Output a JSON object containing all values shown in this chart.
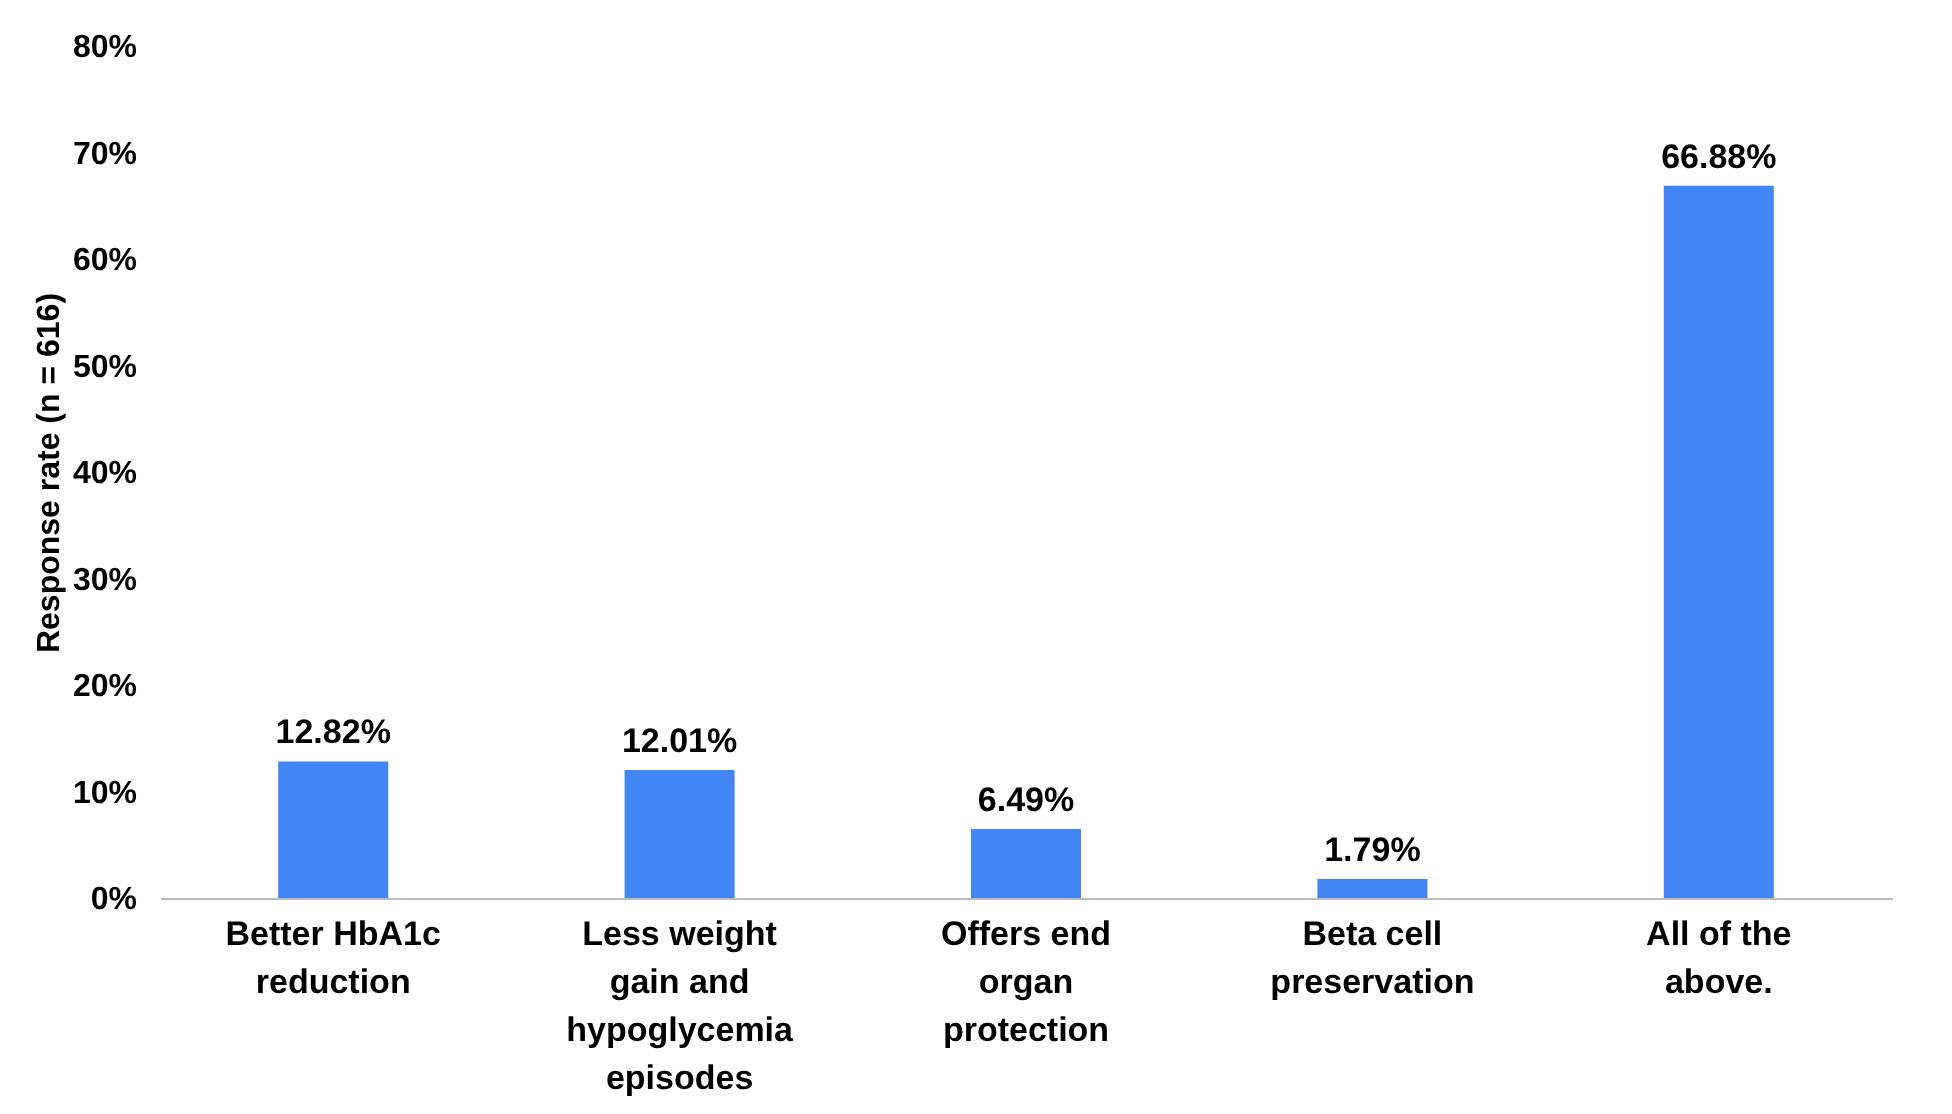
{
  "chart_data": {
    "type": "bar",
    "ylabel": "Response rate (n = 616)",
    "categories": [
      "Better HbA1c reduction",
      "Less weight gain and hypoglycemia episodes",
      "Offers end organ protection",
      "Beta cell preservation",
      "All of the above."
    ],
    "values": [
      12.82,
      12.01,
      6.49,
      1.79,
      66.88
    ],
    "value_labels": [
      "12.82%",
      "12.01%",
      "6.49%",
      "1.79%",
      "66.88%"
    ],
    "color": "#4285f4",
    "ylim": [
      0,
      80
    ],
    "yticks": [
      {
        "value": 0,
        "label": "0%"
      },
      {
        "value": 10,
        "label": "10%"
      },
      {
        "value": 20,
        "label": "20%"
      },
      {
        "value": 30,
        "label": "30%"
      },
      {
        "value": 40,
        "label": "40%"
      },
      {
        "value": 50,
        "label": "50%"
      },
      {
        "value": 60,
        "label": "60%"
      },
      {
        "value": 70,
        "label": "70%"
      },
      {
        "value": 80,
        "label": "80%"
      }
    ],
    "grid": false
  }
}
